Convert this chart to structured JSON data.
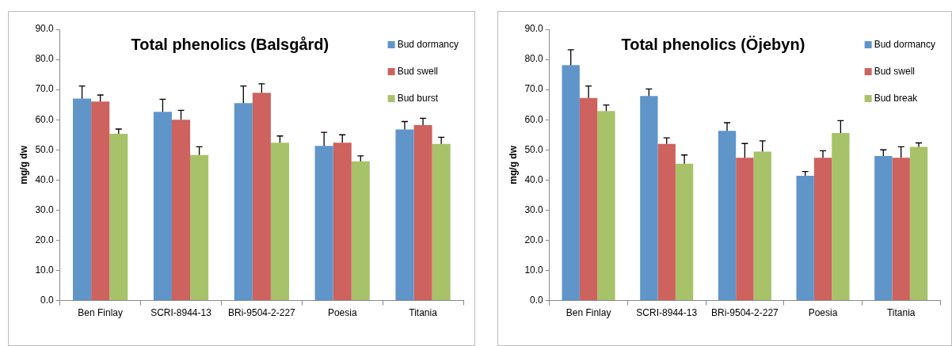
{
  "chart_data": [
    {
      "type": "bar",
      "title": "Total phenolics (Balsgård)",
      "ylabel": "mg/g dw",
      "categories": [
        "Ben Finlay",
        "SCRI-8944-13",
        "BRi-9504-2-227",
        "Poesia",
        "Titania"
      ],
      "series": [
        {
          "name": "Bud dormancy",
          "color": "#6095c9",
          "values": [
            67.0,
            62.6,
            65.5,
            51.3,
            56.8
          ],
          "errors": [
            [
              67.0,
              71.2
            ],
            [
              62.6,
              66.8
            ],
            [
              65.5,
              71.2
            ],
            [
              51.3,
              55.8
            ],
            [
              56.8,
              59.4
            ]
          ]
        },
        {
          "name": "Bud swell",
          "color": "#cd625e",
          "values": [
            66.0,
            60.0,
            68.9,
            52.4,
            58.2
          ],
          "errors": [
            [
              66.0,
              68.2
            ],
            [
              60.0,
              63.1
            ],
            [
              68.9,
              71.9
            ],
            [
              52.4,
              55.0
            ],
            [
              58.2,
              60.5
            ]
          ]
        },
        {
          "name": "Bud burst",
          "color": "#a8c26a",
          "values": [
            55.3,
            48.3,
            52.4,
            46.2,
            52.0
          ],
          "errors": [
            [
              55.3,
              56.9
            ],
            [
              48.3,
              51.0
            ],
            [
              52.4,
              54.6
            ],
            [
              46.2,
              48.0
            ],
            [
              52.0,
              54.2
            ]
          ]
        }
      ],
      "ylim": [
        0,
        90
      ],
      "yticks": [
        {
          "value": 0,
          "label": "0.0"
        },
        {
          "value": 10,
          "label": "10.0"
        },
        {
          "value": 20,
          "label": "20.0"
        },
        {
          "value": 30,
          "label": "30.0"
        },
        {
          "value": 40,
          "label": "40.0"
        },
        {
          "value": 50,
          "label": "50.0"
        },
        {
          "value": 60,
          "label": "60.0"
        },
        {
          "value": 70,
          "label": "70.0"
        },
        {
          "value": 80,
          "label": "80.0"
        },
        {
          "value": 90,
          "label": "90.0"
        }
      ],
      "grid": false,
      "legend": "top right"
    },
    {
      "type": "bar",
      "title": "Total phenolics (Öjebyn)",
      "ylabel": "mg/g dw",
      "categories": [
        "Ben Finlay",
        "SCRI-8944-13",
        "BRi-9504-2-227",
        "Poesia",
        "Titania"
      ],
      "series": [
        {
          "name": "Bud dormancy",
          "color": "#6095c9",
          "values": [
            78.1,
            67.9,
            56.3,
            41.4,
            48.0
          ],
          "errors": [
            [
              78.1,
              83.2
            ],
            [
              67.9,
              70.2
            ],
            [
              56.3,
              59.0
            ],
            [
              41.4,
              42.8
            ],
            [
              48.0,
              50.0
            ]
          ]
        },
        {
          "name": "Bud swell",
          "color": "#cd625e",
          "values": [
            67.2,
            52.0,
            47.4,
            47.4,
            47.4
          ],
          "errors": [
            [
              67.2,
              71.2
            ],
            [
              52.0,
              54.0
            ],
            [
              47.4,
              52.1
            ],
            [
              47.4,
              49.7
            ],
            [
              47.4,
              51.0
            ]
          ]
        },
        {
          "name": "Bud break",
          "color": "#a8c26a",
          "values": [
            62.9,
            45.4,
            49.4,
            55.6,
            51.0
          ],
          "errors": [
            [
              62.9,
              64.9
            ],
            [
              45.4,
              48.3
            ],
            [
              49.4,
              53.0
            ],
            [
              55.6,
              59.7
            ],
            [
              51.0,
              52.3
            ]
          ]
        }
      ],
      "ylim": [
        0,
        90
      ],
      "yticks": [
        {
          "value": 0,
          "label": "0.0"
        },
        {
          "value": 10,
          "label": "10.0"
        },
        {
          "value": 20,
          "label": "20.0"
        },
        {
          "value": 30,
          "label": "30.0"
        },
        {
          "value": 40,
          "label": "40.0"
        },
        {
          "value": 50,
          "label": "50.0"
        },
        {
          "value": 60,
          "label": "60.0"
        },
        {
          "value": 70,
          "label": "70.0"
        },
        {
          "value": 80,
          "label": "80.0"
        },
        {
          "value": 90,
          "label": "90.0"
        }
      ],
      "grid": false,
      "legend": "top right"
    }
  ]
}
